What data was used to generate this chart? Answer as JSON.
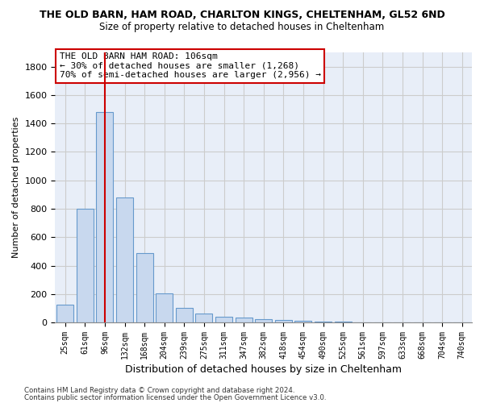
{
  "title": "THE OLD BARN, HAM ROAD, CHARLTON KINGS, CHELTENHAM, GL52 6ND",
  "subtitle": "Size of property relative to detached houses in Cheltenham",
  "xlabel": "Distribution of detached houses by size in Cheltenham",
  "ylabel": "Number of detached properties",
  "bar_labels": [
    "25sqm",
    "61sqm",
    "96sqm",
    "132sqm",
    "168sqm",
    "204sqm",
    "239sqm",
    "275sqm",
    "311sqm",
    "347sqm",
    "382sqm",
    "418sqm",
    "454sqm",
    "490sqm",
    "525sqm",
    "561sqm",
    "597sqm",
    "633sqm",
    "668sqm",
    "704sqm",
    "740sqm"
  ],
  "bar_values": [
    125,
    800,
    1480,
    880,
    490,
    205,
    100,
    65,
    40,
    35,
    25,
    20,
    10,
    5,
    5,
    3,
    3,
    2,
    2,
    1,
    1
  ],
  "bar_color": "#c8d8ee",
  "bar_edgecolor": "#6699cc",
  "property_line_index": 2,
  "property_line_color": "#cc0000",
  "annotation_line1": "THE OLD BARN HAM ROAD: 106sqm",
  "annotation_line2": "← 30% of detached houses are smaller (1,268)",
  "annotation_line3": "70% of semi-detached houses are larger (2,956) →",
  "annotation_box_color": "#cc0000",
  "ylim": [
    0,
    1900
  ],
  "yticks": [
    0,
    200,
    400,
    600,
    800,
    1000,
    1200,
    1400,
    1600,
    1800
  ],
  "grid_color": "#cccccc",
  "background_color": "#e8eef8",
  "footer_line1": "Contains HM Land Registry data © Crown copyright and database right 2024.",
  "footer_line2": "Contains public sector information licensed under the Open Government Licence v3.0."
}
